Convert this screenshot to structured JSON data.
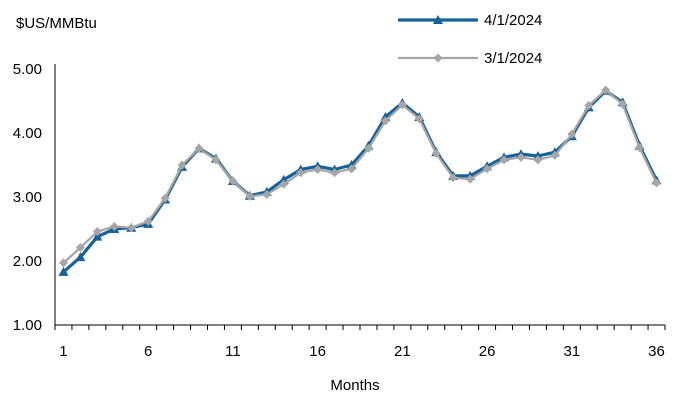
{
  "chart_data": {
    "type": "line",
    "ylabel": "$US/MMBtu",
    "xlabel": "Months",
    "x": [
      1,
      2,
      3,
      4,
      5,
      6,
      7,
      8,
      9,
      10,
      11,
      12,
      13,
      14,
      15,
      16,
      17,
      18,
      19,
      20,
      21,
      22,
      23,
      24,
      25,
      26,
      27,
      28,
      29,
      30,
      31,
      32,
      33,
      34,
      35,
      36
    ],
    "xticks": [
      "1",
      "6",
      "11",
      "16",
      "21",
      "26",
      "31",
      "36"
    ],
    "yticks": [
      "1.00",
      "2.00",
      "3.00",
      "4.00",
      "5.00"
    ],
    "ylim": [
      1.0,
      5.0
    ],
    "grid": false,
    "legend_position": "top-right",
    "series": [
      {
        "name": "4/1/2024",
        "color": "#17629a",
        "marker": "triangle",
        "values": [
          1.83,
          2.06,
          2.38,
          2.5,
          2.52,
          2.58,
          2.96,
          3.47,
          3.76,
          3.6,
          3.25,
          3.02,
          3.08,
          3.27,
          3.43,
          3.48,
          3.43,
          3.5,
          3.8,
          4.25,
          4.47,
          4.25,
          3.7,
          3.33,
          3.33,
          3.48,
          3.62,
          3.67,
          3.64,
          3.7,
          3.95,
          4.4,
          4.66,
          4.48,
          3.8,
          3.26
        ]
      },
      {
        "name": "3/1/2024",
        "color": "#a6a6a6",
        "marker": "diamond",
        "values": [
          1.97,
          2.21,
          2.46,
          2.54,
          2.52,
          2.62,
          2.98,
          3.5,
          3.76,
          3.58,
          3.25,
          3.01,
          3.04,
          3.2,
          3.38,
          3.43,
          3.38,
          3.44,
          3.76,
          4.19,
          4.44,
          4.22,
          3.68,
          3.3,
          3.28,
          3.44,
          3.58,
          3.62,
          3.58,
          3.65,
          3.98,
          4.43,
          4.67,
          4.45,
          3.77,
          3.22
        ]
      }
    ]
  }
}
